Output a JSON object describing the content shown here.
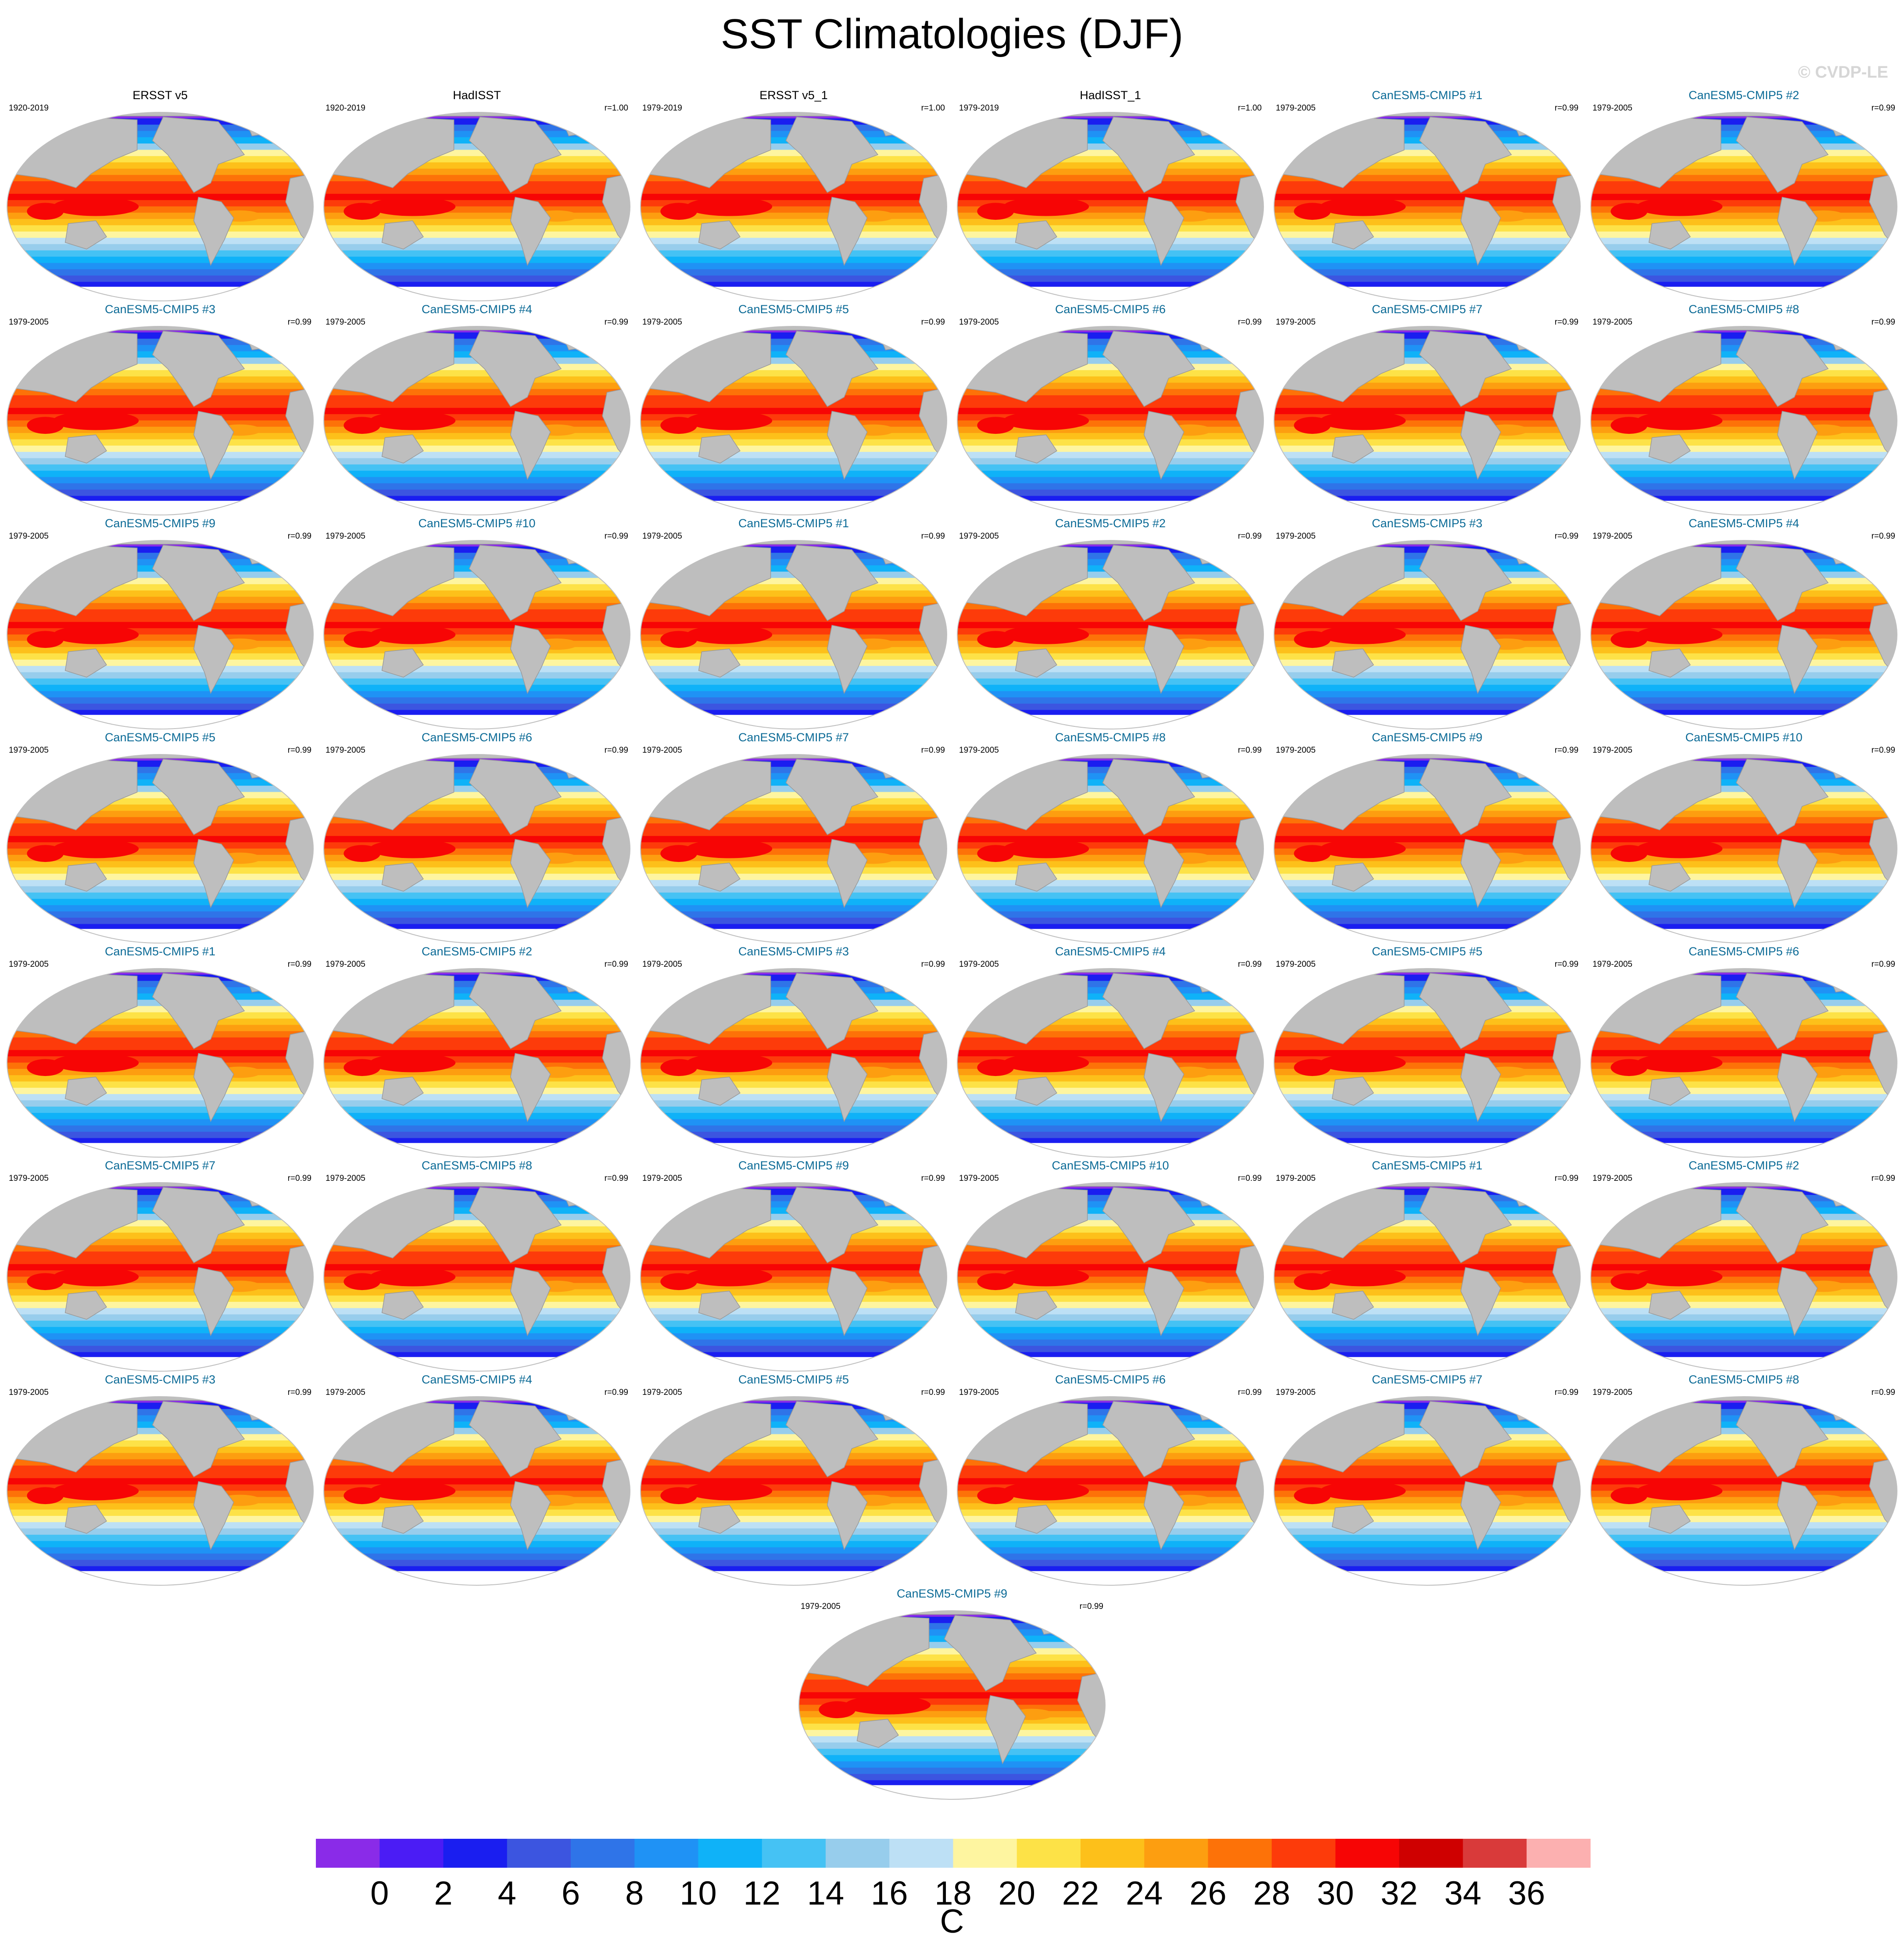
{
  "title": "SST Climatologies (DJF)",
  "watermark": "© CVDP-LE",
  "panels": [
    {
      "title": "ERSST v5",
      "years": "1920-2019",
      "r": "",
      "observed": true
    },
    {
      "title": "HadISST",
      "years": "1920-2019",
      "r": "r=1.00",
      "observed": true
    },
    {
      "title": "ERSST v5_1",
      "years": "1979-2019",
      "r": "r=1.00",
      "observed": true
    },
    {
      "title": "HadISST_1",
      "years": "1979-2019",
      "r": "r=1.00",
      "observed": true
    },
    {
      "title": "CanESM5-CMIP5 #1",
      "years": "1979-2005",
      "r": "r=0.99",
      "observed": false
    },
    {
      "title": "CanESM5-CMIP5 #2",
      "years": "1979-2005",
      "r": "r=0.99",
      "observed": false
    },
    {
      "title": "CanESM5-CMIP5 #3",
      "years": "1979-2005",
      "r": "r=0.99",
      "observed": false
    },
    {
      "title": "CanESM5-CMIP5 #4",
      "years": "1979-2005",
      "r": "r=0.99",
      "observed": false
    },
    {
      "title": "CanESM5-CMIP5 #5",
      "years": "1979-2005",
      "r": "r=0.99",
      "observed": false
    },
    {
      "title": "CanESM5-CMIP5 #6",
      "years": "1979-2005",
      "r": "r=0.99",
      "observed": false
    },
    {
      "title": "CanESM5-CMIP5 #7",
      "years": "1979-2005",
      "r": "r=0.99",
      "observed": false
    },
    {
      "title": "CanESM5-CMIP5 #8",
      "years": "1979-2005",
      "r": "r=0.99",
      "observed": false
    },
    {
      "title": "CanESM5-CMIP5 #9",
      "years": "1979-2005",
      "r": "r=0.99",
      "observed": false
    },
    {
      "title": "CanESM5-CMIP5 #10",
      "years": "1979-2005",
      "r": "r=0.99",
      "observed": false
    },
    {
      "title": "CanESM5-CMIP5 #1",
      "years": "1979-2005",
      "r": "r=0.99",
      "observed": false
    },
    {
      "title": "CanESM5-CMIP5 #2",
      "years": "1979-2005",
      "r": "r=0.99",
      "observed": false
    },
    {
      "title": "CanESM5-CMIP5 #3",
      "years": "1979-2005",
      "r": "r=0.99",
      "observed": false
    },
    {
      "title": "CanESM5-CMIP5 #4",
      "years": "1979-2005",
      "r": "r=0.99",
      "observed": false
    },
    {
      "title": "CanESM5-CMIP5 #5",
      "years": "1979-2005",
      "r": "r=0.99",
      "observed": false
    },
    {
      "title": "CanESM5-CMIP5 #6",
      "years": "1979-2005",
      "r": "r=0.99",
      "observed": false
    },
    {
      "title": "CanESM5-CMIP5 #7",
      "years": "1979-2005",
      "r": "r=0.99",
      "observed": false
    },
    {
      "title": "CanESM5-CMIP5 #8",
      "years": "1979-2005",
      "r": "r=0.99",
      "observed": false
    },
    {
      "title": "CanESM5-CMIP5 #9",
      "years": "1979-2005",
      "r": "r=0.99",
      "observed": false
    },
    {
      "title": "CanESM5-CMIP5 #10",
      "years": "1979-2005",
      "r": "r=0.99",
      "observed": false
    },
    {
      "title": "CanESM5-CMIP5 #1",
      "years": "1979-2005",
      "r": "r=0.99",
      "observed": false
    },
    {
      "title": "CanESM5-CMIP5 #2",
      "years": "1979-2005",
      "r": "r=0.99",
      "observed": false
    },
    {
      "title": "CanESM5-CMIP5 #3",
      "years": "1979-2005",
      "r": "r=0.99",
      "observed": false
    },
    {
      "title": "CanESM5-CMIP5 #4",
      "years": "1979-2005",
      "r": "r=0.99",
      "observed": false
    },
    {
      "title": "CanESM5-CMIP5 #5",
      "years": "1979-2005",
      "r": "r=0.99",
      "observed": false
    },
    {
      "title": "CanESM5-CMIP5 #6",
      "years": "1979-2005",
      "r": "r=0.99",
      "observed": false
    },
    {
      "title": "CanESM5-CMIP5 #7",
      "years": "1979-2005",
      "r": "r=0.99",
      "observed": false
    },
    {
      "title": "CanESM5-CMIP5 #8",
      "years": "1979-2005",
      "r": "r=0.99",
      "observed": false
    },
    {
      "title": "CanESM5-CMIP5 #9",
      "years": "1979-2005",
      "r": "r=0.99",
      "observed": false
    },
    {
      "title": "CanESM5-CMIP5 #10",
      "years": "1979-2005",
      "r": "r=0.99",
      "observed": false
    },
    {
      "title": "CanESM5-CMIP5 #1",
      "years": "1979-2005",
      "r": "r=0.99",
      "observed": false
    },
    {
      "title": "CanESM5-CMIP5 #2",
      "years": "1979-2005",
      "r": "r=0.99",
      "observed": false
    },
    {
      "title": "CanESM5-CMIP5 #3",
      "years": "1979-2005",
      "r": "r=0.99",
      "observed": false
    },
    {
      "title": "CanESM5-CMIP5 #4",
      "years": "1979-2005",
      "r": "r=0.99",
      "observed": false
    },
    {
      "title": "CanESM5-CMIP5 #5",
      "years": "1979-2005",
      "r": "r=0.99",
      "observed": false
    },
    {
      "title": "CanESM5-CMIP5 #6",
      "years": "1979-2005",
      "r": "r=0.99",
      "observed": false
    },
    {
      "title": "CanESM5-CMIP5 #7",
      "years": "1979-2005",
      "r": "r=0.99",
      "observed": false
    },
    {
      "title": "CanESM5-CMIP5 #8",
      "years": "1979-2005",
      "r": "r=0.99",
      "observed": false
    },
    {
      "title": "CanESM5-CMIP5 #9",
      "years": "1979-2005",
      "r": "r=0.99",
      "observed": false
    }
  ],
  "chart_data": {
    "type": "heatmap",
    "title": "SST Climatologies (DJF)",
    "colorbar": {
      "units": "C",
      "tick_labels": [
        "0",
        "2",
        "4",
        "6",
        "8",
        "10",
        "12",
        "14",
        "16",
        "18",
        "20",
        "22",
        "24",
        "26",
        "28",
        "30",
        "32",
        "34",
        "36"
      ],
      "colors": [
        "#8a2be8",
        "#4b1cf5",
        "#1a1ef0",
        "#3c55e0",
        "#2f74e8",
        "#1f92f5",
        "#0fb2f8",
        "#45c2f4",
        "#97cdec",
        "#bde0f5",
        "#fef5a0",
        "#fde247",
        "#fdc01a",
        "#fd9e10",
        "#fd7208",
        "#fd3b0a",
        "#f70505",
        "#cf0000",
        "#d93a3a",
        "#fcb0b0"
      ]
    },
    "projection": "Robinson (global)",
    "land_color": "#bebebe",
    "panel_count": 43
  }
}
